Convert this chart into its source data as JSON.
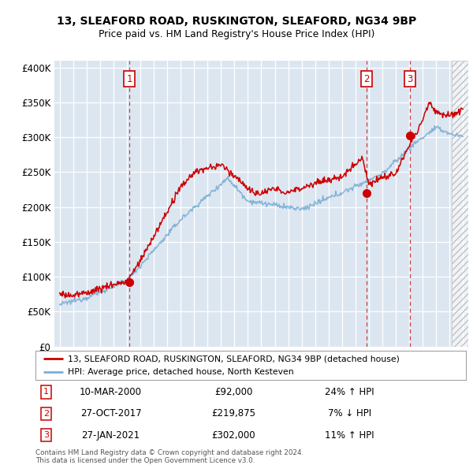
{
  "title1": "13, SLEAFORD ROAD, RUSKINGTON, SLEAFORD, NG34 9BP",
  "title2": "Price paid vs. HM Land Registry's House Price Index (HPI)",
  "ylabel_ticks": [
    "£0",
    "£50K",
    "£100K",
    "£150K",
    "£200K",
    "£250K",
    "£300K",
    "£350K",
    "£400K"
  ],
  "ytick_values": [
    0,
    50000,
    100000,
    150000,
    200000,
    250000,
    300000,
    350000,
    400000
  ],
  "ylim": [
    0,
    410000
  ],
  "xlim_start": 1994.6,
  "xlim_end": 2025.4,
  "background_color": "#dce6f1",
  "legend_label_red": "13, SLEAFORD ROAD, RUSKINGTON, SLEAFORD, NG34 9BP (detached house)",
  "legend_label_blue": "HPI: Average price, detached house, North Kesteven",
  "transactions": [
    {
      "num": 1,
      "date": "10-MAR-2000",
      "price": "£92,000",
      "pct": "24%",
      "dir": "↑",
      "year": 2000.19
    },
    {
      "num": 2,
      "date": "27-OCT-2017",
      "price": "£219,875",
      "pct": "7%",
      "dir": "↓",
      "year": 2017.82
    },
    {
      "num": 3,
      "date": "27-JAN-2021",
      "price": "£302,000",
      "pct": "11%",
      "dir": "↑",
      "year": 2021.07
    }
  ],
  "transaction_values": [
    92000,
    219875,
    302000
  ],
  "footer1": "Contains HM Land Registry data © Crown copyright and database right 2024.",
  "footer2": "This data is licensed under the Open Government Licence v3.0.",
  "red_color": "#cc0000",
  "blue_color": "#7bafd4",
  "hatch_start": 2024.17
}
